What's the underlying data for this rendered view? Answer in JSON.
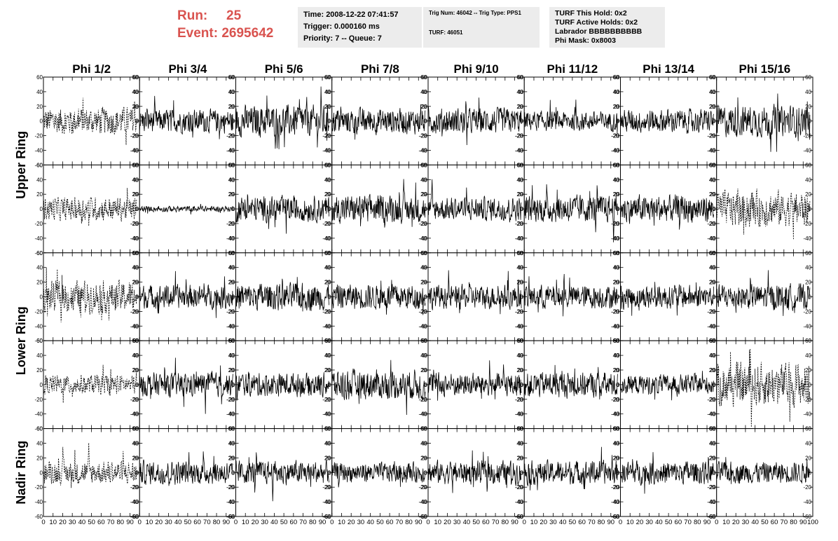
{
  "header": {
    "run_label": "Run:",
    "run_value": "25",
    "event_label": "Event:",
    "event_value": "2695642",
    "time": "Time: 2008-12-22 07:41:57",
    "trigger": "Trigger: 0.000160 ms",
    "priority": "Priority: 7 -- Queue: 7",
    "trig_num": "Trig Num: 46042 -- Trig Type: PPS1",
    "turf": "TURF: 46051",
    "turf_this_hold": "TURF This Hold: 0x2",
    "turf_active_holds": "TURF Active Holds: 0x2",
    "labrador": "Labrador BBBBBBBBBB",
    "phi_mask": "Phi Mask: 0x8003"
  },
  "columns": [
    "Phi 1/2",
    "Phi 3/4",
    "Phi 5/6",
    "Phi 7/8",
    "Phi 9/10",
    "Phi 11/12",
    "Phi 13/14",
    "Phi 15/16"
  ],
  "ring_labels": [
    "Upper Ring",
    "Lower Ring",
    "Nadir Ring"
  ],
  "colors": {
    "run_text": "#d9534f",
    "info_box": "#ececec",
    "trace": "#000000"
  },
  "chart_data": {
    "type": "line",
    "title": "",
    "xlabel": "",
    "ylabel": "",
    "xlim": [
      0,
      100
    ],
    "ylim": [
      -60,
      60
    ],
    "x_ticks": [
      0,
      10,
      20,
      30,
      40,
      50,
      60,
      70,
      80,
      90,
      100
    ],
    "y_ticks": [
      -60,
      -40,
      -20,
      0,
      20,
      40,
      60
    ],
    "grid": false,
    "n_samples": 256,
    "panel_rows": 5,
    "panel_cols": 8,
    "dashed_panels": [
      [
        0,
        0
      ],
      [
        1,
        0
      ],
      [
        1,
        7
      ],
      [
        2,
        0
      ],
      [
        3,
        0
      ],
      [
        3,
        7
      ],
      [
        4,
        0
      ]
    ],
    "amplitudes": [
      [
        14,
        12,
        16,
        13,
        13,
        10,
        12,
        16
      ],
      [
        12,
        3,
        13,
        14,
        12,
        14,
        14,
        18
      ],
      [
        16,
        12,
        14,
        13,
        12,
        12,
        12,
        13
      ],
      [
        10,
        12,
        12,
        15,
        12,
        13,
        10,
        22
      ],
      [
        12,
        12,
        12,
        10,
        12,
        12,
        12,
        11
      ]
    ]
  }
}
